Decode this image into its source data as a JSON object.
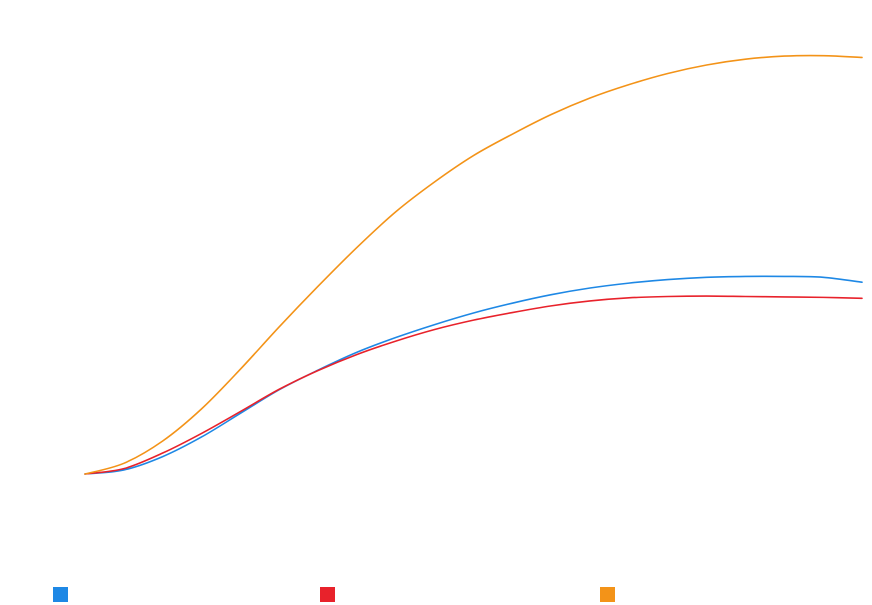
{
  "chart_data": {
    "type": "line",
    "title": "",
    "xlabel": "",
    "ylabel": "",
    "grid": false,
    "legend_position": "bottom",
    "xlim": [
      0,
      1
    ],
    "ylim": [
      0,
      1
    ],
    "series": [
      {
        "color": "#1e88e5",
        "x": [
          0.0,
          0.05,
          0.1,
          0.15,
          0.2,
          0.25,
          0.3,
          0.35,
          0.4,
          0.45,
          0.5,
          0.55,
          0.6,
          0.65,
          0.7,
          0.75,
          0.8,
          0.85,
          0.9,
          0.95,
          1.0
        ],
        "values": [
          0.0,
          0.009,
          0.039,
          0.083,
          0.136,
          0.189,
          0.233,
          0.273,
          0.306,
          0.335,
          0.361,
          0.383,
          0.402,
          0.417,
          0.428,
          0.436,
          0.441,
          0.443,
          0.443,
          0.441,
          0.43
        ]
      },
      {
        "color": "#e8222b",
        "x": [
          0.0,
          0.05,
          0.1,
          0.15,
          0.2,
          0.25,
          0.3,
          0.35,
          0.4,
          0.45,
          0.5,
          0.55,
          0.6,
          0.65,
          0.7,
          0.75,
          0.8,
          0.85,
          0.9,
          0.95,
          1.0
        ],
        "values": [
          0.0,
          0.012,
          0.047,
          0.091,
          0.14,
          0.19,
          0.232,
          0.268,
          0.298,
          0.324,
          0.345,
          0.362,
          0.377,
          0.388,
          0.395,
          0.398,
          0.399,
          0.398,
          0.397,
          0.396,
          0.394
        ]
      },
      {
        "color": "#f39318",
        "x": [
          0.0,
          0.05,
          0.1,
          0.15,
          0.2,
          0.25,
          0.3,
          0.35,
          0.4,
          0.45,
          0.5,
          0.55,
          0.6,
          0.65,
          0.7,
          0.75,
          0.8,
          0.85,
          0.9,
          0.95,
          1.0
        ],
        "values": [
          0.0,
          0.024,
          0.074,
          0.146,
          0.235,
          0.33,
          0.421,
          0.508,
          0.588,
          0.655,
          0.714,
          0.762,
          0.806,
          0.843,
          0.873,
          0.898,
          0.917,
          0.93,
          0.937,
          0.938,
          0.934
        ]
      }
    ]
  }
}
